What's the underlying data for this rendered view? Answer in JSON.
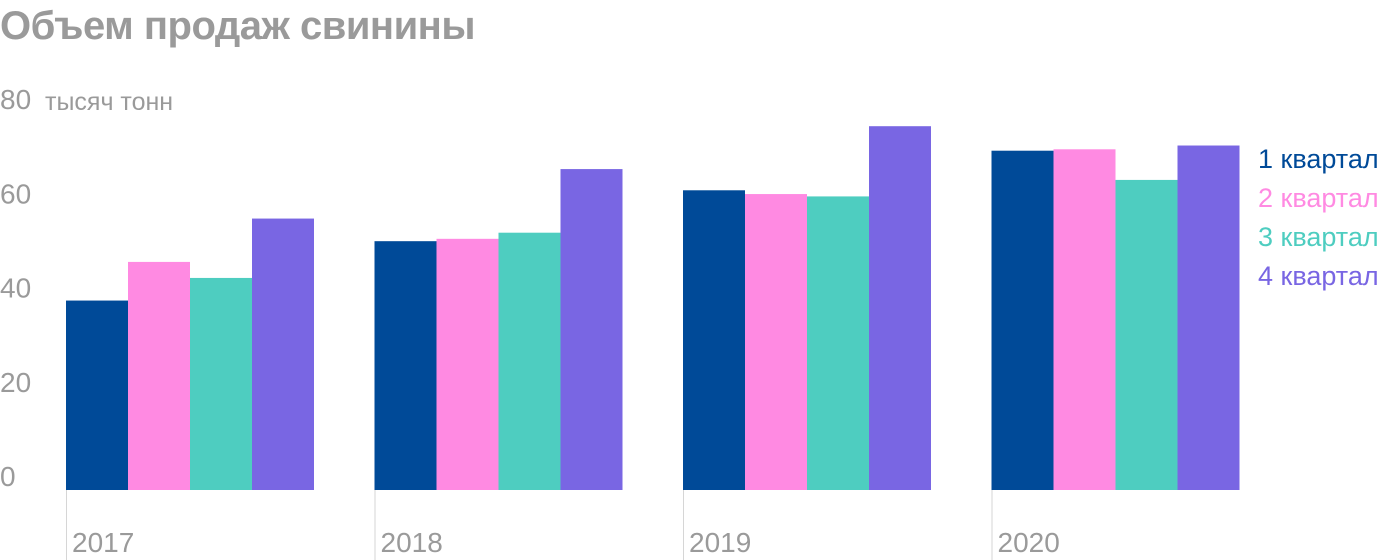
{
  "chart_data": {
    "type": "bar",
    "title": "Объем продаж свинины",
    "ylabel": "тысяч тонн",
    "xlabel": "",
    "categories": [
      "2017",
      "2018",
      "2019",
      "2020"
    ],
    "ylim": [
      0,
      80
    ],
    "yticks": [
      0,
      20,
      40,
      60,
      80
    ],
    "grid": false,
    "legend_position": "right",
    "series": [
      {
        "name": "1 квартал",
        "color": "#004a98",
        "values": [
          40.2,
          52.8,
          63.6,
          72.0
        ]
      },
      {
        "name": "2 квартал",
        "color": "#ff8ae2",
        "values": [
          48.4,
          53.3,
          62.8,
          72.3
        ]
      },
      {
        "name": "3 квартал",
        "color": "#4ecdc0",
        "values": [
          45.0,
          54.6,
          62.3,
          65.8
        ]
      },
      {
        "name": "4 квартал",
        "color": "#7966e3",
        "values": [
          57.6,
          68.1,
          77.2,
          73.1
        ]
      }
    ]
  }
}
